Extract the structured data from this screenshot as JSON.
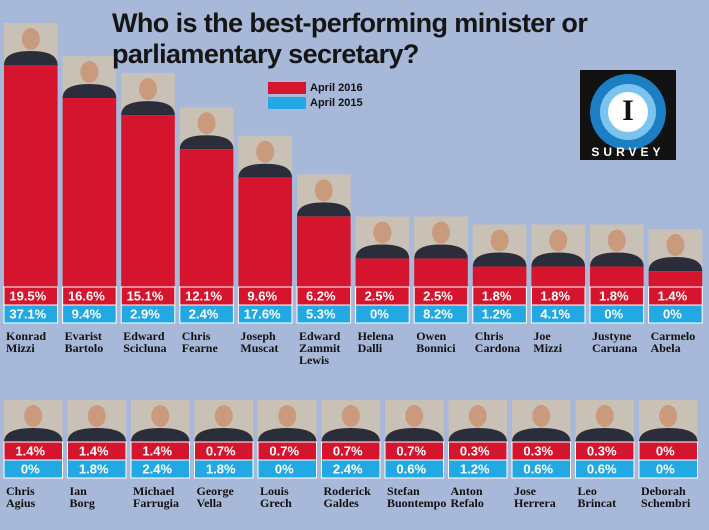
{
  "chart_data": {
    "type": "bar",
    "title": "Who is the best-performing minister or parliamentary secretary?",
    "logo": {
      "letter": "I",
      "caption": "SURVEY"
    },
    "categories": [
      "Konrad Mizzi",
      "Evarist Bartolo",
      "Edward Scicluna",
      "Chris Fearne",
      "Joseph Muscat",
      "Edward Zammit Lewis",
      "Helena Dalli",
      "Owen Bonnici",
      "Chris Cardona",
      "Joe Mizzi",
      "Justyne Caruana",
      "Carmelo Abela",
      "Chris Agius",
      "Ian Borg",
      "Michael Farrugia",
      "George Vella",
      "Louis Grech",
      "Roderick Galdes",
      "Stefan Buontempo",
      "Anton Refalo",
      "Jose Herrera",
      "Leo Brincat",
      "Deborah Schembri"
    ],
    "series": [
      {
        "name": "April 2016",
        "color": "#d5152d",
        "values": [
          19.5,
          16.6,
          15.1,
          12.1,
          9.6,
          6.2,
          2.5,
          2.5,
          1.8,
          1.8,
          1.8,
          1.4,
          1.4,
          1.4,
          1.4,
          0.7,
          0.7,
          0.7,
          0.7,
          0.3,
          0.3,
          0.3,
          0
        ],
        "value_labels": [
          "19.5%",
          "16.6%",
          "15.1%",
          "12.1%",
          "9.6%",
          "6.2%",
          "2.5%",
          "2.5%",
          "1.8%",
          "1.8%",
          "1.8%",
          "1.4%",
          "1.4%",
          "1.4%",
          "1.4%",
          "0.7%",
          "0.7%",
          "0.7%",
          "0.7%",
          "0.3%",
          "0.3%",
          "0.3%",
          "0%"
        ]
      },
      {
        "name": "April 2015",
        "color": "#22a9e4",
        "values": [
          37.1,
          9.4,
          2.9,
          2.4,
          17.6,
          5.3,
          0,
          8.2,
          1.2,
          4.1,
          0,
          0,
          0,
          1.8,
          2.4,
          1.8,
          0,
          2.4,
          0.6,
          1.2,
          0.6,
          0.6,
          0
        ],
        "value_labels": [
          "37.1%",
          "9.4%",
          "2.9%",
          "2.4%",
          "17.6%",
          "5.3%",
          "0%",
          "8.2%",
          "1.2%",
          "4.1%",
          "0%",
          "0%",
          "0%",
          "1.8%",
          "2.4%",
          "1.8%",
          "0%",
          "2.4%",
          "0.6%",
          "1.2%",
          "0.6%",
          "0.6%",
          "0%"
        ]
      }
    ]
  }
}
